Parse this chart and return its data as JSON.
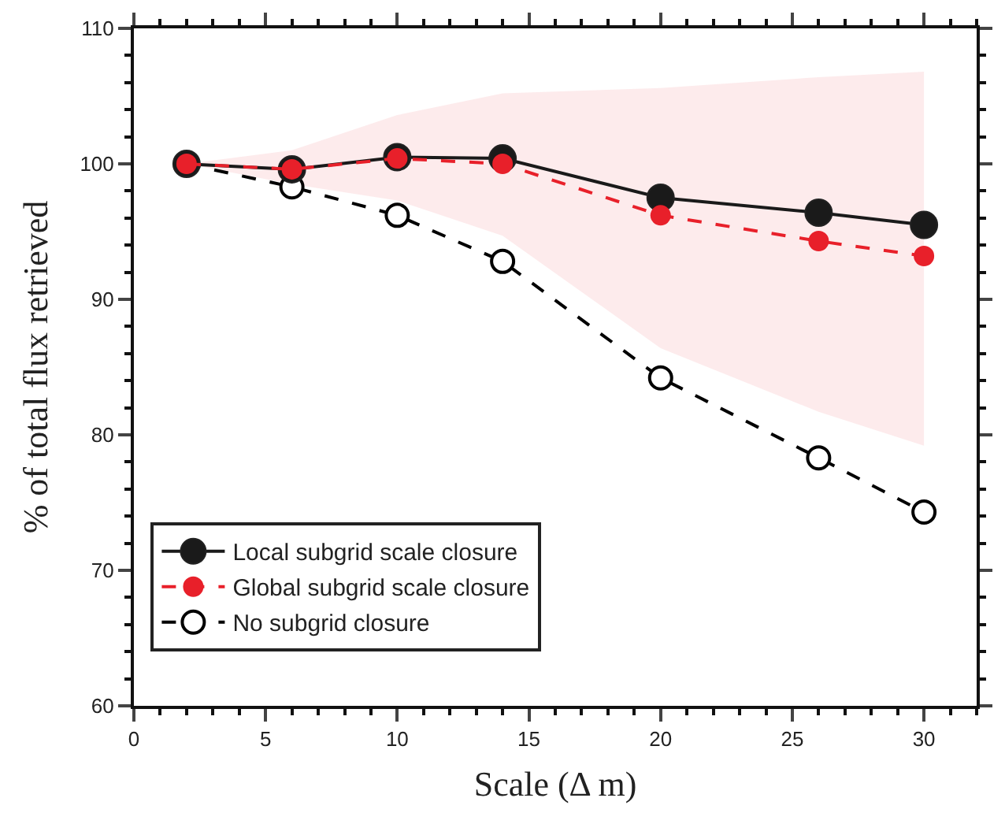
{
  "chart_data": {
    "type": "line",
    "xlabel": "Scale (Δ m)",
    "ylabel": "% of total flux retrieved",
    "x": [
      2,
      6,
      10,
      14,
      20,
      26,
      30
    ],
    "series": [
      {
        "name": "Local subgrid scale closure",
        "color": "#1a1a1a",
        "line_style": "solid",
        "marker": "circle",
        "values": [
          100,
          99.6,
          100.5,
          100.4,
          97.5,
          96.4,
          95.5
        ]
      },
      {
        "name": "Global subgrid scale closure",
        "color": "#e8202a",
        "line_style": "dashed",
        "marker": "circle",
        "values": [
          100,
          99.6,
          100.4,
          100,
          96.2,
          94.3,
          93.2
        ],
        "lower": [
          100,
          98.5,
          97.3,
          94.7,
          86.4,
          81.7,
          79.2
        ],
        "upper": [
          100,
          101,
          103.6,
          105.2,
          105.6,
          106.4,
          106.8
        ]
      },
      {
        "name": "No subgrid closure",
        "color": "#000000",
        "line_style": "dashed",
        "marker": "open circle",
        "values": [
          100,
          98.3,
          96.2,
          92.8,
          84.2,
          78.3,
          74.3
        ]
      }
    ],
    "xlim": [
      0,
      32
    ],
    "xticks": [
      0,
      5,
      10,
      15,
      20,
      25,
      30
    ],
    "ylim": [
      60,
      110
    ],
    "yticks": [
      60,
      70,
      80,
      90,
      100,
      110
    ],
    "grid": false,
    "legend": "bottom left"
  }
}
